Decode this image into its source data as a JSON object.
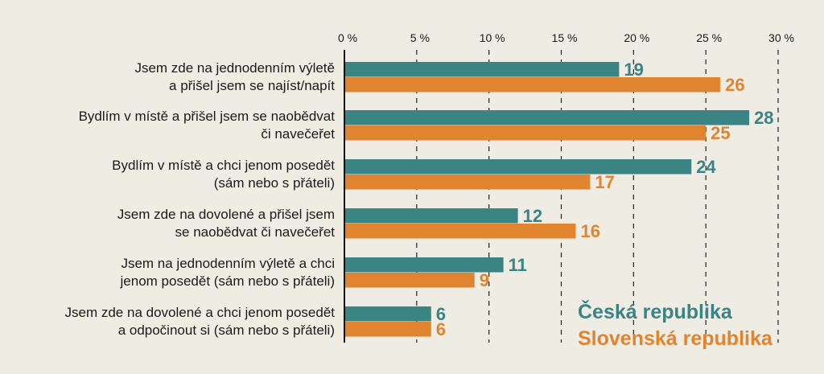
{
  "chart_data": {
    "type": "bar",
    "orientation": "horizontal",
    "categories": [
      [
        "Jsem zde na jednodenním výletě",
        "a přišel jsem se najíst/napít"
      ],
      [
        "Bydlím v místě a přišel jsem se naobědvat",
        "či navečeřet"
      ],
      [
        "Bydlím v místě a chci jenom posedět",
        "(sám nebo s přáteli)"
      ],
      [
        "Jsem zde na dovolené a přišel jsem",
        "se naobědvat či navečeřet"
      ],
      [
        "Jsem na jednodenním výletě a chci",
        "jenom posedět (sám nebo s přáteli)"
      ],
      [
        "Jsem zde na dovolené a chci jenom posedět",
        "a odpočinout si (sám nebo s přáteli)"
      ]
    ],
    "series": [
      {
        "name": "Česká republika",
        "color": "#3a8484",
        "values": [
          19,
          28,
          24,
          12,
          11,
          6
        ]
      },
      {
        "name": "Slovenská republika",
        "color": "#e08430",
        "values": [
          26,
          25,
          17,
          16,
          9,
          6
        ]
      }
    ],
    "xlim": [
      0,
      30
    ],
    "xticks": [
      0,
      5,
      10,
      15,
      20,
      25,
      30
    ],
    "xtick_labels": [
      "0 %",
      "5 %",
      "10 %",
      "15 %",
      "20 %",
      "25 %",
      "30 %"
    ],
    "grid": "vertical dashed",
    "legend": "bottom-right",
    "background": "#efece4"
  }
}
